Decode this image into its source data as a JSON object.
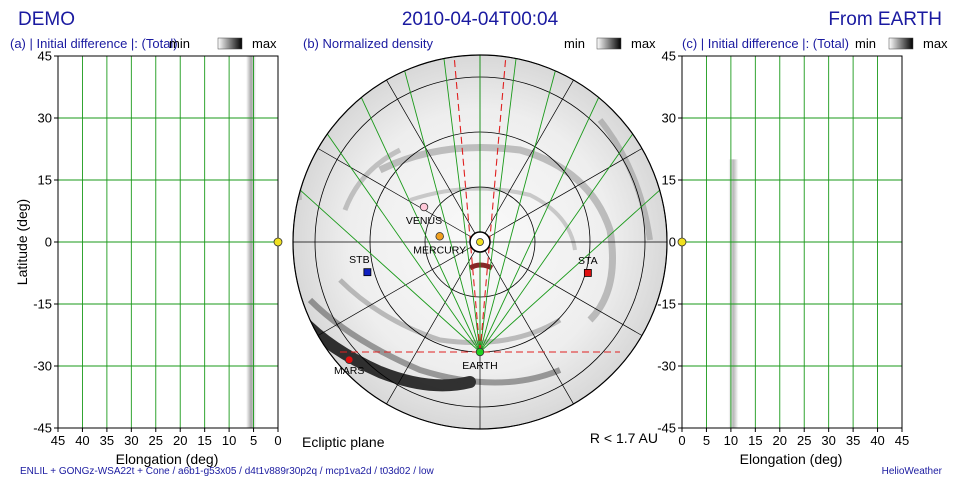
{
  "header": {
    "left_title": "DEMO",
    "center_title": "2010-04-04T00:04",
    "right_title": "From EARTH"
  },
  "colorbar": {
    "min_label": "min",
    "max_label": "max"
  },
  "panels": {
    "left": {
      "title": "(a) | Initial difference |: (Total)"
    },
    "center": {
      "title": "(b) Normalized density",
      "bottom_left": "Ecliptic plane",
      "bottom_right": "R < 1.7 AU"
    },
    "right": {
      "title": "(c) | Initial difference |: (Total)"
    }
  },
  "footer": {
    "left": "ENLIL + GONGz-WSA22t + Cone / a6b1-g53x05 / d4t1v889r30p2q / mcp1va2d / t03d02 / low",
    "right": "HelioWeather"
  },
  "bodies": {
    "venus": {
      "label": "VENUS",
      "color": "#ffc8d8"
    },
    "mercury": {
      "label": "MERCURY",
      "color": "#f0a020"
    },
    "stb": {
      "label": "STB",
      "color": "#1020c0"
    },
    "sta": {
      "label": "STA",
      "color": "#e01010"
    },
    "earth": {
      "label": "EARTH",
      "color": "#20d020"
    },
    "mars": {
      "label": "MARS",
      "color": "#e01010"
    },
    "sun": {
      "color": "#f0e020"
    }
  },
  "colors": {
    "grid": "#1a9a1a",
    "accent": "#1a1aa0",
    "los": "#e02020"
  },
  "chart_data": [
    {
      "type": "heatmap",
      "title": "(a) | Initial difference |: (Total)",
      "xlabel": "Elongation (deg)",
      "ylabel": "Latitude (deg)",
      "xlim": [
        45,
        0
      ],
      "ylim": [
        -45,
        45
      ],
      "x_ticks": [
        45,
        40,
        35,
        30,
        25,
        20,
        15,
        10,
        5,
        0
      ],
      "x_tick_labels": [
        "45",
        "40",
        "35",
        "30",
        "25",
        "20",
        "15",
        "10",
        "5",
        "0"
      ],
      "y_ticks": [
        45,
        30,
        15,
        0,
        -15,
        -30,
        -45
      ],
      "y_tick_labels": [
        "45",
        "30",
        "15",
        "0",
        "-15",
        "-30",
        "-45"
      ],
      "grid": true,
      "features": [
        {
          "elongation": 5.5,
          "lat_range": [
            -45,
            45
          ],
          "intensity": 0.35
        }
      ]
    },
    {
      "type": "heatmap",
      "title": "(b) Normalized density",
      "view": "Ecliptic plane",
      "range": "R < 1.7 AU",
      "radial_rings_au": [
        0.05,
        0.5,
        1.0,
        1.5,
        1.7
      ],
      "bodies": [
        {
          "name": "VENUS",
          "angle_deg": 148,
          "r_au": 0.6
        },
        {
          "name": "MERCURY",
          "angle_deg": 172,
          "r_au": 0.37
        },
        {
          "name": "STB",
          "angle_deg": 195,
          "r_au": 1.06
        },
        {
          "name": "STA",
          "angle_deg": -16,
          "r_au": 1.02
        },
        {
          "name": "EARTH",
          "angle_deg": -90,
          "r_au": 1.0
        },
        {
          "name": "MARS",
          "angle_deg": 222,
          "r_au": 1.6
        }
      ]
    },
    {
      "type": "heatmap",
      "title": "(c) | Initial difference |: (Total)",
      "xlabel": "Elongation (deg)",
      "ylabel": "",
      "xlim": [
        0,
        45
      ],
      "ylim": [
        -45,
        45
      ],
      "x_ticks": [
        0,
        5,
        10,
        15,
        20,
        25,
        30,
        35,
        40,
        45
      ],
      "x_tick_labels": [
        "0",
        "5",
        "10",
        "15",
        "20",
        "25",
        "30",
        "35",
        "40",
        "45"
      ],
      "y_ticks": [
        45,
        30,
        15,
        0,
        -15,
        -30,
        -45
      ],
      "y_tick_labels": [
        "45",
        "30",
        "15",
        "0",
        "-15",
        "-30",
        "-45"
      ],
      "grid": true,
      "features": [
        {
          "elongation": 10.5,
          "lat_range": [
            -45,
            20
          ],
          "intensity": 0.3
        }
      ]
    }
  ]
}
